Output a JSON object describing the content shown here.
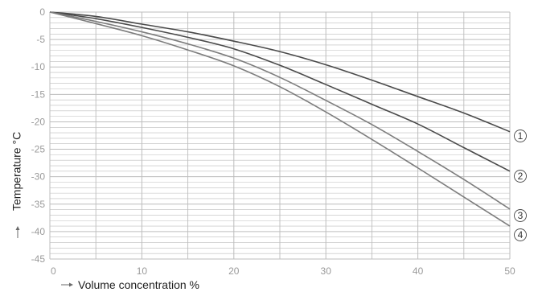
{
  "chart_data": {
    "type": "line",
    "title": "",
    "xlabel": "Volume concentration %",
    "ylabel": "Temperature °C",
    "xlim": [
      0,
      50
    ],
    "ylim": [
      -45,
      0
    ],
    "xticks": [
      "0",
      "10",
      "20",
      "30",
      "40",
      "50"
    ],
    "yticks": [
      "0",
      "-5",
      "-10",
      "-15",
      "-20",
      "-25",
      "-30",
      "-35",
      "-40",
      "-45"
    ],
    "grid": true,
    "legend": "inline-right",
    "series": [
      {
        "name": "1",
        "color": "#4a4a4a",
        "x": [
          0,
          5,
          10,
          15,
          20,
          25,
          30,
          35,
          40,
          45,
          50
        ],
        "y": [
          0,
          -0.8,
          -2.2,
          -3.6,
          -5.3,
          -7.2,
          -9.6,
          -12.4,
          -15.4,
          -18.4,
          -21.8
        ]
      },
      {
        "name": "2",
        "color": "#4a4a4a",
        "x": [
          0,
          5,
          10,
          15,
          20,
          25,
          30,
          35,
          40,
          45,
          50
        ],
        "y": [
          0,
          -1.2,
          -2.8,
          -4.6,
          -6.7,
          -9.7,
          -13.2,
          -16.8,
          -20.4,
          -24.7,
          -29.0
        ]
      },
      {
        "name": "3",
        "color": "#7d7d7d",
        "x": [
          0,
          5,
          10,
          15,
          20,
          25,
          30,
          35,
          40,
          45,
          50
        ],
        "y": [
          0,
          -1.7,
          -3.6,
          -5.8,
          -8.4,
          -11.9,
          -16.1,
          -20.5,
          -25.4,
          -30.5,
          -35.9
        ]
      },
      {
        "name": "4",
        "color": "#7d7d7d",
        "x": [
          0,
          5,
          10,
          15,
          20,
          25,
          30,
          35,
          40,
          45,
          50
        ],
        "y": [
          0,
          -2.1,
          -4.3,
          -6.9,
          -9.8,
          -13.6,
          -18.2,
          -23.2,
          -28.4,
          -33.7,
          -39.0
        ]
      }
    ],
    "markers": [
      "①",
      "②",
      "③",
      "④"
    ],
    "axis_arrow": "⟶",
    "grid_color": "#bdbdbd"
  }
}
